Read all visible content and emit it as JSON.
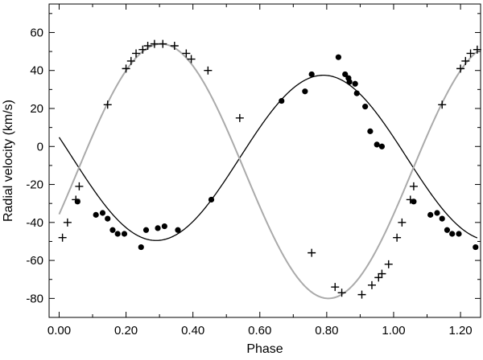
{
  "chart_data": {
    "type": "scatter",
    "title": "",
    "xlabel": "Phase",
    "ylabel": "Radial velocity (km/s)",
    "xlim": [
      -0.03,
      1.26
    ],
    "ylim": [
      -90,
      75
    ],
    "xticks": [
      0.0,
      0.2,
      0.4,
      0.6,
      0.8,
      1.0,
      1.2
    ],
    "xtick_labels": [
      "0.00",
      "0.20",
      "0.40",
      "0.60",
      "0.80",
      "1.00",
      "1.20"
    ],
    "yticks": [
      -80,
      -60,
      -40,
      -20,
      0,
      20,
      40,
      60
    ],
    "ytick_labels": [
      "-80",
      "-60",
      "-40",
      "-20",
      "0",
      "20",
      "40",
      "60"
    ],
    "grid": false,
    "legend": "none",
    "series": [
      {
        "marker": "plus",
        "color": "#000000",
        "x": [
          0.01,
          0.025,
          0.05,
          0.06,
          0.145,
          0.2,
          0.215,
          0.23,
          0.25,
          0.265,
          0.285,
          0.31,
          0.345,
          0.38,
          0.395,
          0.445,
          0.54,
          0.755,
          0.825,
          0.845,
          0.905,
          0.935,
          0.955,
          0.965,
          0.985,
          1.01,
          1.025,
          1.05,
          1.06,
          1.145,
          1.2,
          1.215,
          1.23,
          1.25
        ],
        "y": [
          -48,
          -40,
          -28,
          -21,
          22,
          41,
          45,
          49,
          51,
          53,
          54,
          54,
          53,
          49,
          46,
          40,
          15,
          -56,
          -74,
          -77,
          -78,
          -73,
          -69,
          -67,
          -62,
          -48,
          -40,
          -28,
          -21,
          22,
          41,
          45,
          49,
          51
        ]
      },
      {
        "marker": "circle",
        "color": "#000000",
        "x": [
          0.055,
          0.11,
          0.13,
          0.145,
          0.16,
          0.175,
          0.195,
          0.245,
          0.26,
          0.295,
          0.315,
          0.355,
          0.455,
          0.665,
          0.735,
          0.755,
          0.835,
          0.855,
          0.865,
          0.868,
          0.885,
          0.89,
          0.915,
          0.93,
          0.95,
          0.965,
          1.06,
          1.11,
          1.13,
          1.145,
          1.16,
          1.175,
          1.195,
          1.245
        ],
        "y": [
          -29,
          -36,
          -35,
          -38,
          -44,
          -46,
          -46,
          -53,
          -44,
          -43,
          -42,
          -44,
          -28,
          24,
          29,
          38,
          47,
          38,
          36,
          34,
          33,
          28,
          21,
          8,
          1,
          0,
          -29,
          -36,
          -35,
          -38,
          -44,
          -46,
          -46,
          -53
        ]
      }
    ],
    "fit_curves": [
      {
        "color": "#000000",
        "gamma": -6,
        "amplitude": 43.5,
        "phase_of_max": 0.79
      },
      {
        "color": "#aaaaaa",
        "gamma": -13,
        "amplitude": 67,
        "phase_of_max": 0.305
      }
    ]
  }
}
